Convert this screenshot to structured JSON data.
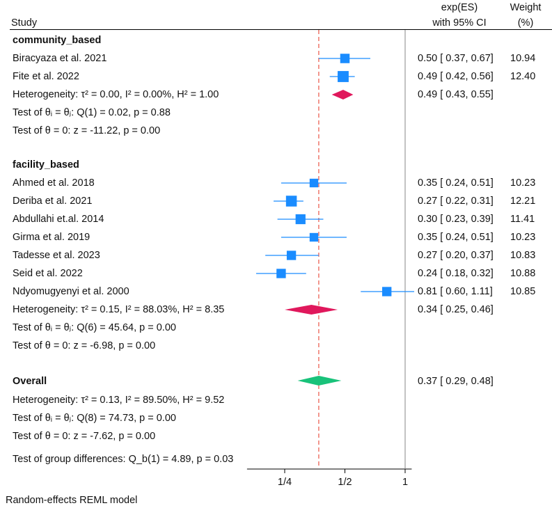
{
  "header": {
    "study": "Study",
    "es_line1": "exp(ES)",
    "es_line2": "with 95% CI",
    "weight_line1": "Weight",
    "weight_line2": "(%)"
  },
  "groups": [
    {
      "name": "community_based",
      "studies": [
        {
          "label": "Biracyaza et al. 2021",
          "es": 0.5,
          "lo": 0.37,
          "hi": 0.67,
          "es_text": "0.50 [ 0.37,  0.67]",
          "weight": "10.94"
        },
        {
          "label": "Fite et al. 2022",
          "es": 0.49,
          "lo": 0.42,
          "hi": 0.56,
          "es_text": "0.49 [ 0.42,  0.56]",
          "weight": "12.40"
        }
      ],
      "pooled": {
        "es": 0.49,
        "lo": 0.43,
        "hi": 0.55,
        "es_text": "0.49 [ 0.43,  0.55]"
      },
      "heterogeneity": "Heterogeneity: τ² = 0.00, I² = 0.00%, H² = 1.00",
      "test_q": "Test of θᵢ = θⱼ: Q(1) = 0.02, p = 0.88",
      "test_z": "Test of θ = 0: z = -11.22, p = 0.00"
    },
    {
      "name": "facility_based",
      "studies": [
        {
          "label": "Ahmed et al. 2018",
          "es": 0.35,
          "lo": 0.24,
          "hi": 0.51,
          "es_text": "0.35 [ 0.24,  0.51]",
          "weight": "10.23"
        },
        {
          "label": "Deriba et al. 2021",
          "es": 0.27,
          "lo": 0.22,
          "hi": 0.31,
          "es_text": "0.27 [ 0.22,  0.31]",
          "weight": "12.21"
        },
        {
          "label": "Abdullahi et.al. 2014",
          "es": 0.3,
          "lo": 0.23,
          "hi": 0.39,
          "es_text": "0.30 [ 0.23,  0.39]",
          "weight": "11.41"
        },
        {
          "label": "Girma et al. 2019",
          "es": 0.35,
          "lo": 0.24,
          "hi": 0.51,
          "es_text": "0.35 [ 0.24,  0.51]",
          "weight": "10.23"
        },
        {
          "label": "Tadesse et al. 2023",
          "es": 0.27,
          "lo": 0.2,
          "hi": 0.37,
          "es_text": "0.27 [ 0.20,  0.37]",
          "weight": "10.83"
        },
        {
          "label": "Seid et al. 2022",
          "es": 0.24,
          "lo": 0.18,
          "hi": 0.32,
          "es_text": "0.24 [ 0.18,  0.32]",
          "weight": "10.88"
        },
        {
          "label": "Ndyomugyenyi et al. 2000",
          "es": 0.81,
          "lo": 0.6,
          "hi": 1.11,
          "es_text": "0.81 [ 0.60,  1.11]",
          "weight": "10.85"
        }
      ],
      "pooled": {
        "es": 0.34,
        "lo": 0.25,
        "hi": 0.46,
        "es_text": "0.34 [ 0.25,  0.46]"
      },
      "heterogeneity": "Heterogeneity: τ² = 0.15, I² = 88.03%, H² = 8.35",
      "test_q": "Test of θᵢ = θⱼ: Q(6) = 45.64, p = 0.00",
      "test_z": "Test of θ = 0: z = -6.98, p = 0.00"
    }
  ],
  "overall": {
    "label": "Overall",
    "es": 0.37,
    "lo": 0.29,
    "hi": 0.48,
    "es_text": "0.37 [ 0.29,  0.48]",
    "heterogeneity": "Heterogeneity: τ² = 0.13, I² = 89.50%, H² = 9.52",
    "test_q": "Test of θᵢ = θⱼ: Q(8) = 74.73, p = 0.00",
    "test_z": "Test of θ = 0: z = -7.62, p = 0.00"
  },
  "group_test": "Test of group differences: Q_b(1) = 4.89, p = 0.03",
  "footnote": "Random-effects REML model",
  "chart_data": {
    "type": "forest",
    "xscale": "log",
    "xlim": [
      0.17,
      1.15
    ],
    "xticks": [
      0.25,
      0.5,
      1
    ],
    "xtick_labels": [
      "1/4",
      "1/2",
      "1"
    ],
    "null_line": 1,
    "overall_line": 0.37,
    "colors": {
      "study_marker": "#1a8cff",
      "subgroup_diamond": "#e0185c",
      "overall_diamond": "#19c27a",
      "overall_line": "#ef7f73",
      "null_line": "#9a9a9a"
    }
  }
}
